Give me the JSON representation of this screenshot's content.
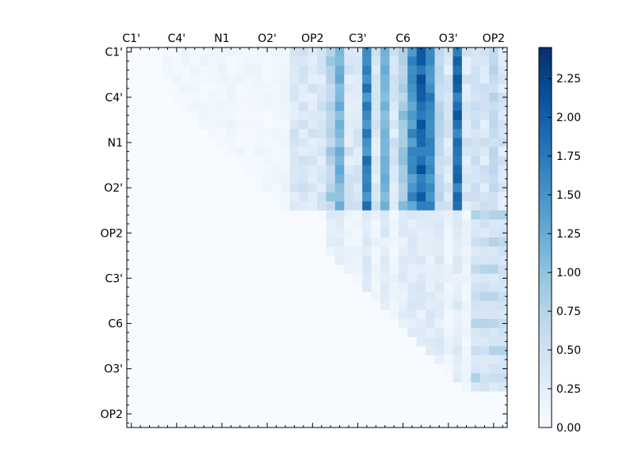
{
  "chart_data": {
    "type": "heatmap",
    "title": "",
    "xlabel": "",
    "ylabel": "",
    "grid_size": 42,
    "x_tick_labels": [
      "C1'",
      "C4'",
      "N1",
      "O2'",
      "OP2",
      "C3'",
      "C6",
      "O3'",
      "OP2"
    ],
    "y_tick_labels": [
      "C1'",
      "C4'",
      "N1",
      "O2'",
      "OP2",
      "C3'",
      "C6",
      "O3'",
      "OP2"
    ],
    "x_axis_position": "top",
    "tick_label_index_step": 5,
    "colormap": "Blues",
    "vmin": 0.0,
    "vmax": 2.45,
    "colorbar_ticks": [
      "0.00",
      "0.25",
      "0.50",
      "0.75",
      "1.00",
      "1.25",
      "1.50",
      "1.75",
      "2.00",
      "2.25"
    ],
    "colorbar_tick_values": [
      0.0,
      0.25,
      0.5,
      0.75,
      1.0,
      1.25,
      1.5,
      1.75,
      2.0,
      2.25
    ],
    "strong_columns": [
      {
        "col": 23,
        "peak": 1.3
      },
      {
        "col": 26,
        "peak": 1.9
      },
      {
        "col": 28,
        "peak": 1.3
      },
      {
        "col": 31,
        "peak": 1.7
      },
      {
        "col": 32,
        "peak": 2.2
      },
      {
        "col": 33,
        "peak": 1.8
      },
      {
        "col": 36,
        "peak": 2.1
      }
    ],
    "medium_columns": [
      {
        "col": 22,
        "peak": 1.0
      },
      {
        "col": 30,
        "peak": 1.1
      },
      {
        "col": 34,
        "peak": 0.8
      },
      {
        "col": 38,
        "peak": 0.6
      },
      {
        "col": 40,
        "peak": 0.75
      }
    ],
    "dense_block": {
      "row_start": 0,
      "row_end": 17,
      "col_start": 18,
      "col_end": 41
    },
    "lower_right_block": {
      "row_start": 18,
      "row_end": 37,
      "col_start": 22,
      "col_end": 41
    }
  }
}
